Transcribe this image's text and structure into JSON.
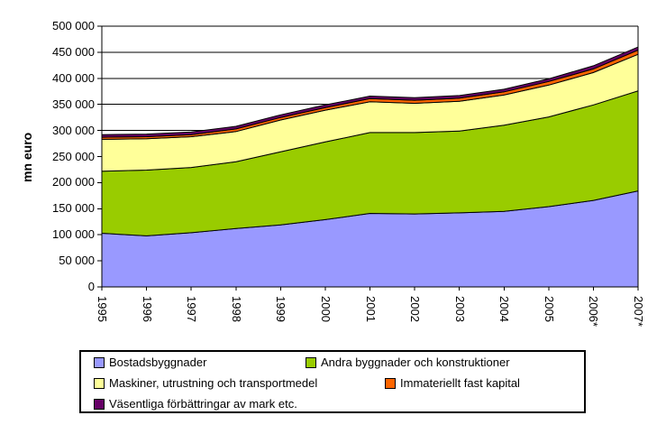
{
  "chart_data": {
    "type": "area",
    "stacked": true,
    "title": "",
    "xlabel": "",
    "ylabel": "mn euro",
    "x": [
      "1995",
      "1996",
      "1997",
      "1998",
      "1999",
      "2000",
      "2001",
      "2002",
      "2003",
      "2004",
      "2005",
      "2006*",
      "2007*"
    ],
    "series": [
      {
        "name": "Bostadsbyggnader",
        "color": "#9999FF",
        "values": [
          103000,
          98000,
          104000,
          112000,
          119000,
          129000,
          141000,
          140000,
          142000,
          145000,
          154000,
          166000,
          184000
        ]
      },
      {
        "name": "Andra byggnader och konstruktioner",
        "color": "#99CC00",
        "values": [
          119000,
          126000,
          125000,
          128000,
          140000,
          149000,
          155000,
          156000,
          157000,
          165000,
          172000,
          183000,
          192000
        ]
      },
      {
        "name": "Maskiner, utrustning och transportmedel",
        "color": "#FFFF99",
        "values": [
          61000,
          60000,
          59000,
          58000,
          61000,
          61000,
          59000,
          56000,
          57000,
          58000,
          61000,
          62000,
          70000
        ]
      },
      {
        "name": "Immateriellt fast kapital",
        "color": "#FF6600",
        "values": [
          4000,
          4000,
          4000,
          5000,
          5000,
          5000,
          6000,
          6000,
          6000,
          6000,
          7000,
          7000,
          8000
        ]
      },
      {
        "name": "Väsentliga förbättringar av mark etc.",
        "color": "#660066",
        "values": [
          5000,
          5000,
          5000,
          5000,
          5000,
          5000,
          5000,
          5000,
          5000,
          5000,
          5000,
          6000,
          6000
        ]
      }
    ],
    "ylim": [
      0,
      500000
    ],
    "ytick_step": 50000,
    "ytick_labels": [
      "0",
      "50 000",
      "100 000",
      "150 000",
      "200 000",
      "250 000",
      "300 000",
      "350 000",
      "400 000",
      "450 000",
      "500 000"
    ],
    "grid": true,
    "legend_position": "bottom",
    "axis_color": "#000000",
    "grid_color": "#000000",
    "area_border_color": "#000000"
  }
}
